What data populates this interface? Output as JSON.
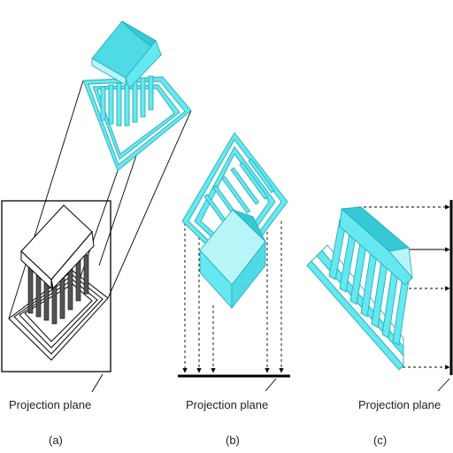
{
  "colors": {
    "cyan": "#66e8f0",
    "cyan_dark": "#34c9d4",
    "cyan_light": "#b8f5f8",
    "ink": "#000000",
    "line": "#222222"
  },
  "panels": [
    {
      "id": "a",
      "plane_label": "Projection plane",
      "caption": "(a)"
    },
    {
      "id": "b",
      "plane_label": "Projection plane",
      "caption": "(b)"
    },
    {
      "id": "c",
      "plane_label": "Projection plane",
      "caption": "(c)"
    }
  ]
}
